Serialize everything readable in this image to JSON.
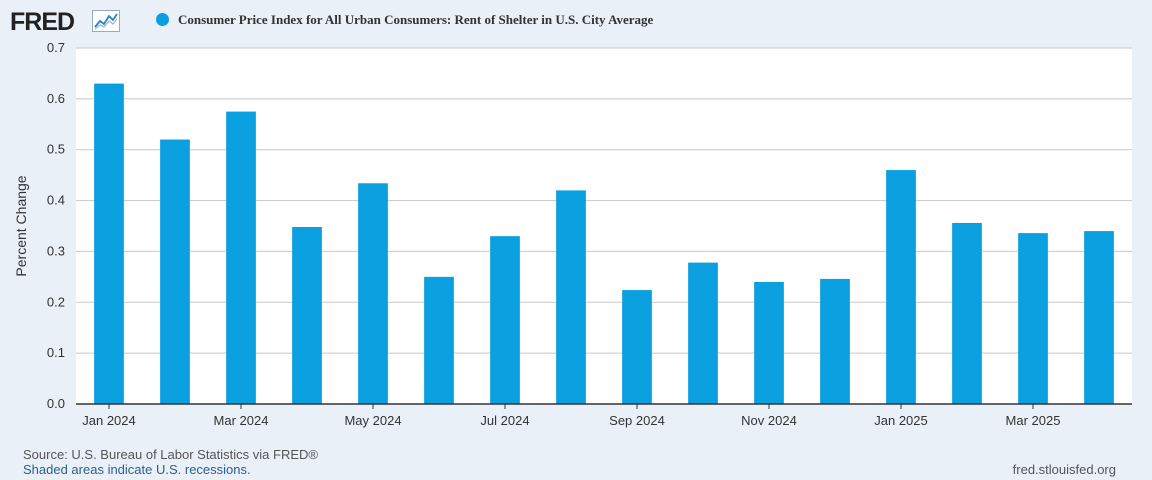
{
  "header": {
    "logo": "FRED",
    "logo_icon": "line-chart-icon",
    "title": "Consumer Price Index for All Urban Consumers: Rent of Shelter in U.S. City Average"
  },
  "colors": {
    "bar": "#0a9fdf",
    "background": "#e9f0f8",
    "plot_background": "#ffffff",
    "grid": "#c8c8c8"
  },
  "chart_data": {
    "type": "bar",
    "title": "Consumer Price Index for All Urban Consumers: Rent of Shelter in U.S. City Average",
    "ylabel": "Percent Change",
    "xlabel": "",
    "ylim": [
      0,
      0.7
    ],
    "yticks": [
      "0.0",
      "0.1",
      "0.2",
      "0.3",
      "0.4",
      "0.5",
      "0.6",
      "0.7"
    ],
    "categories": [
      "2024-01",
      "2024-02",
      "2024-03",
      "2024-04",
      "2024-05",
      "2024-06",
      "2024-07",
      "2024-08",
      "2024-09",
      "2024-10",
      "2024-11",
      "2024-12",
      "2025-01",
      "2025-02",
      "2025-03",
      "2025-04"
    ],
    "values": [
      0.63,
      0.52,
      0.575,
      0.348,
      0.434,
      0.25,
      0.33,
      0.42,
      0.224,
      0.278,
      0.24,
      0.246,
      0.46,
      0.356,
      0.336,
      0.34
    ],
    "xtick_labels": [
      {
        "category": "2024-01",
        "label": "Jan 2024"
      },
      {
        "category": "2024-03",
        "label": "Mar 2024"
      },
      {
        "category": "2024-05",
        "label": "May 2024"
      },
      {
        "category": "2024-07",
        "label": "Jul 2024"
      },
      {
        "category": "2024-09",
        "label": "Sep 2024"
      },
      {
        "category": "2024-11",
        "label": "Nov 2024"
      },
      {
        "category": "2025-01",
        "label": "Jan 2025"
      },
      {
        "category": "2025-03",
        "label": "Mar 2025"
      }
    ],
    "grid": true,
    "legend_placement": "top-left"
  },
  "footer": {
    "source": "Source: U.S. Bureau of Labor Statistics via FRED®",
    "recessions": "Shaded areas indicate U.S. recessions.",
    "url": "fred.stlouisfed.org"
  }
}
